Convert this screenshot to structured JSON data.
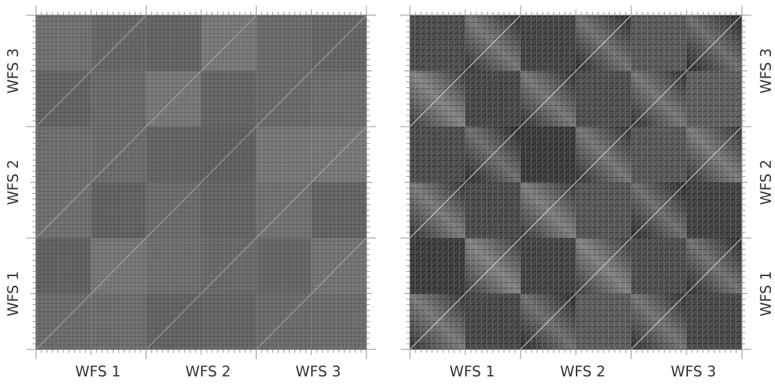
{
  "panels": [
    {
      "x_labels": [
        "WFS 1",
        "WFS 2",
        "WFS 3"
      ],
      "y_labels": [
        "WFS 1",
        "WFS 2",
        "WFS 3"
      ]
    },
    {
      "x_labels": [
        "WFS 1",
        "WFS 2",
        "WFS 3"
      ],
      "y_labels": [
        "WFS 1",
        "WFS 2",
        "WFS 3"
      ]
    }
  ]
}
